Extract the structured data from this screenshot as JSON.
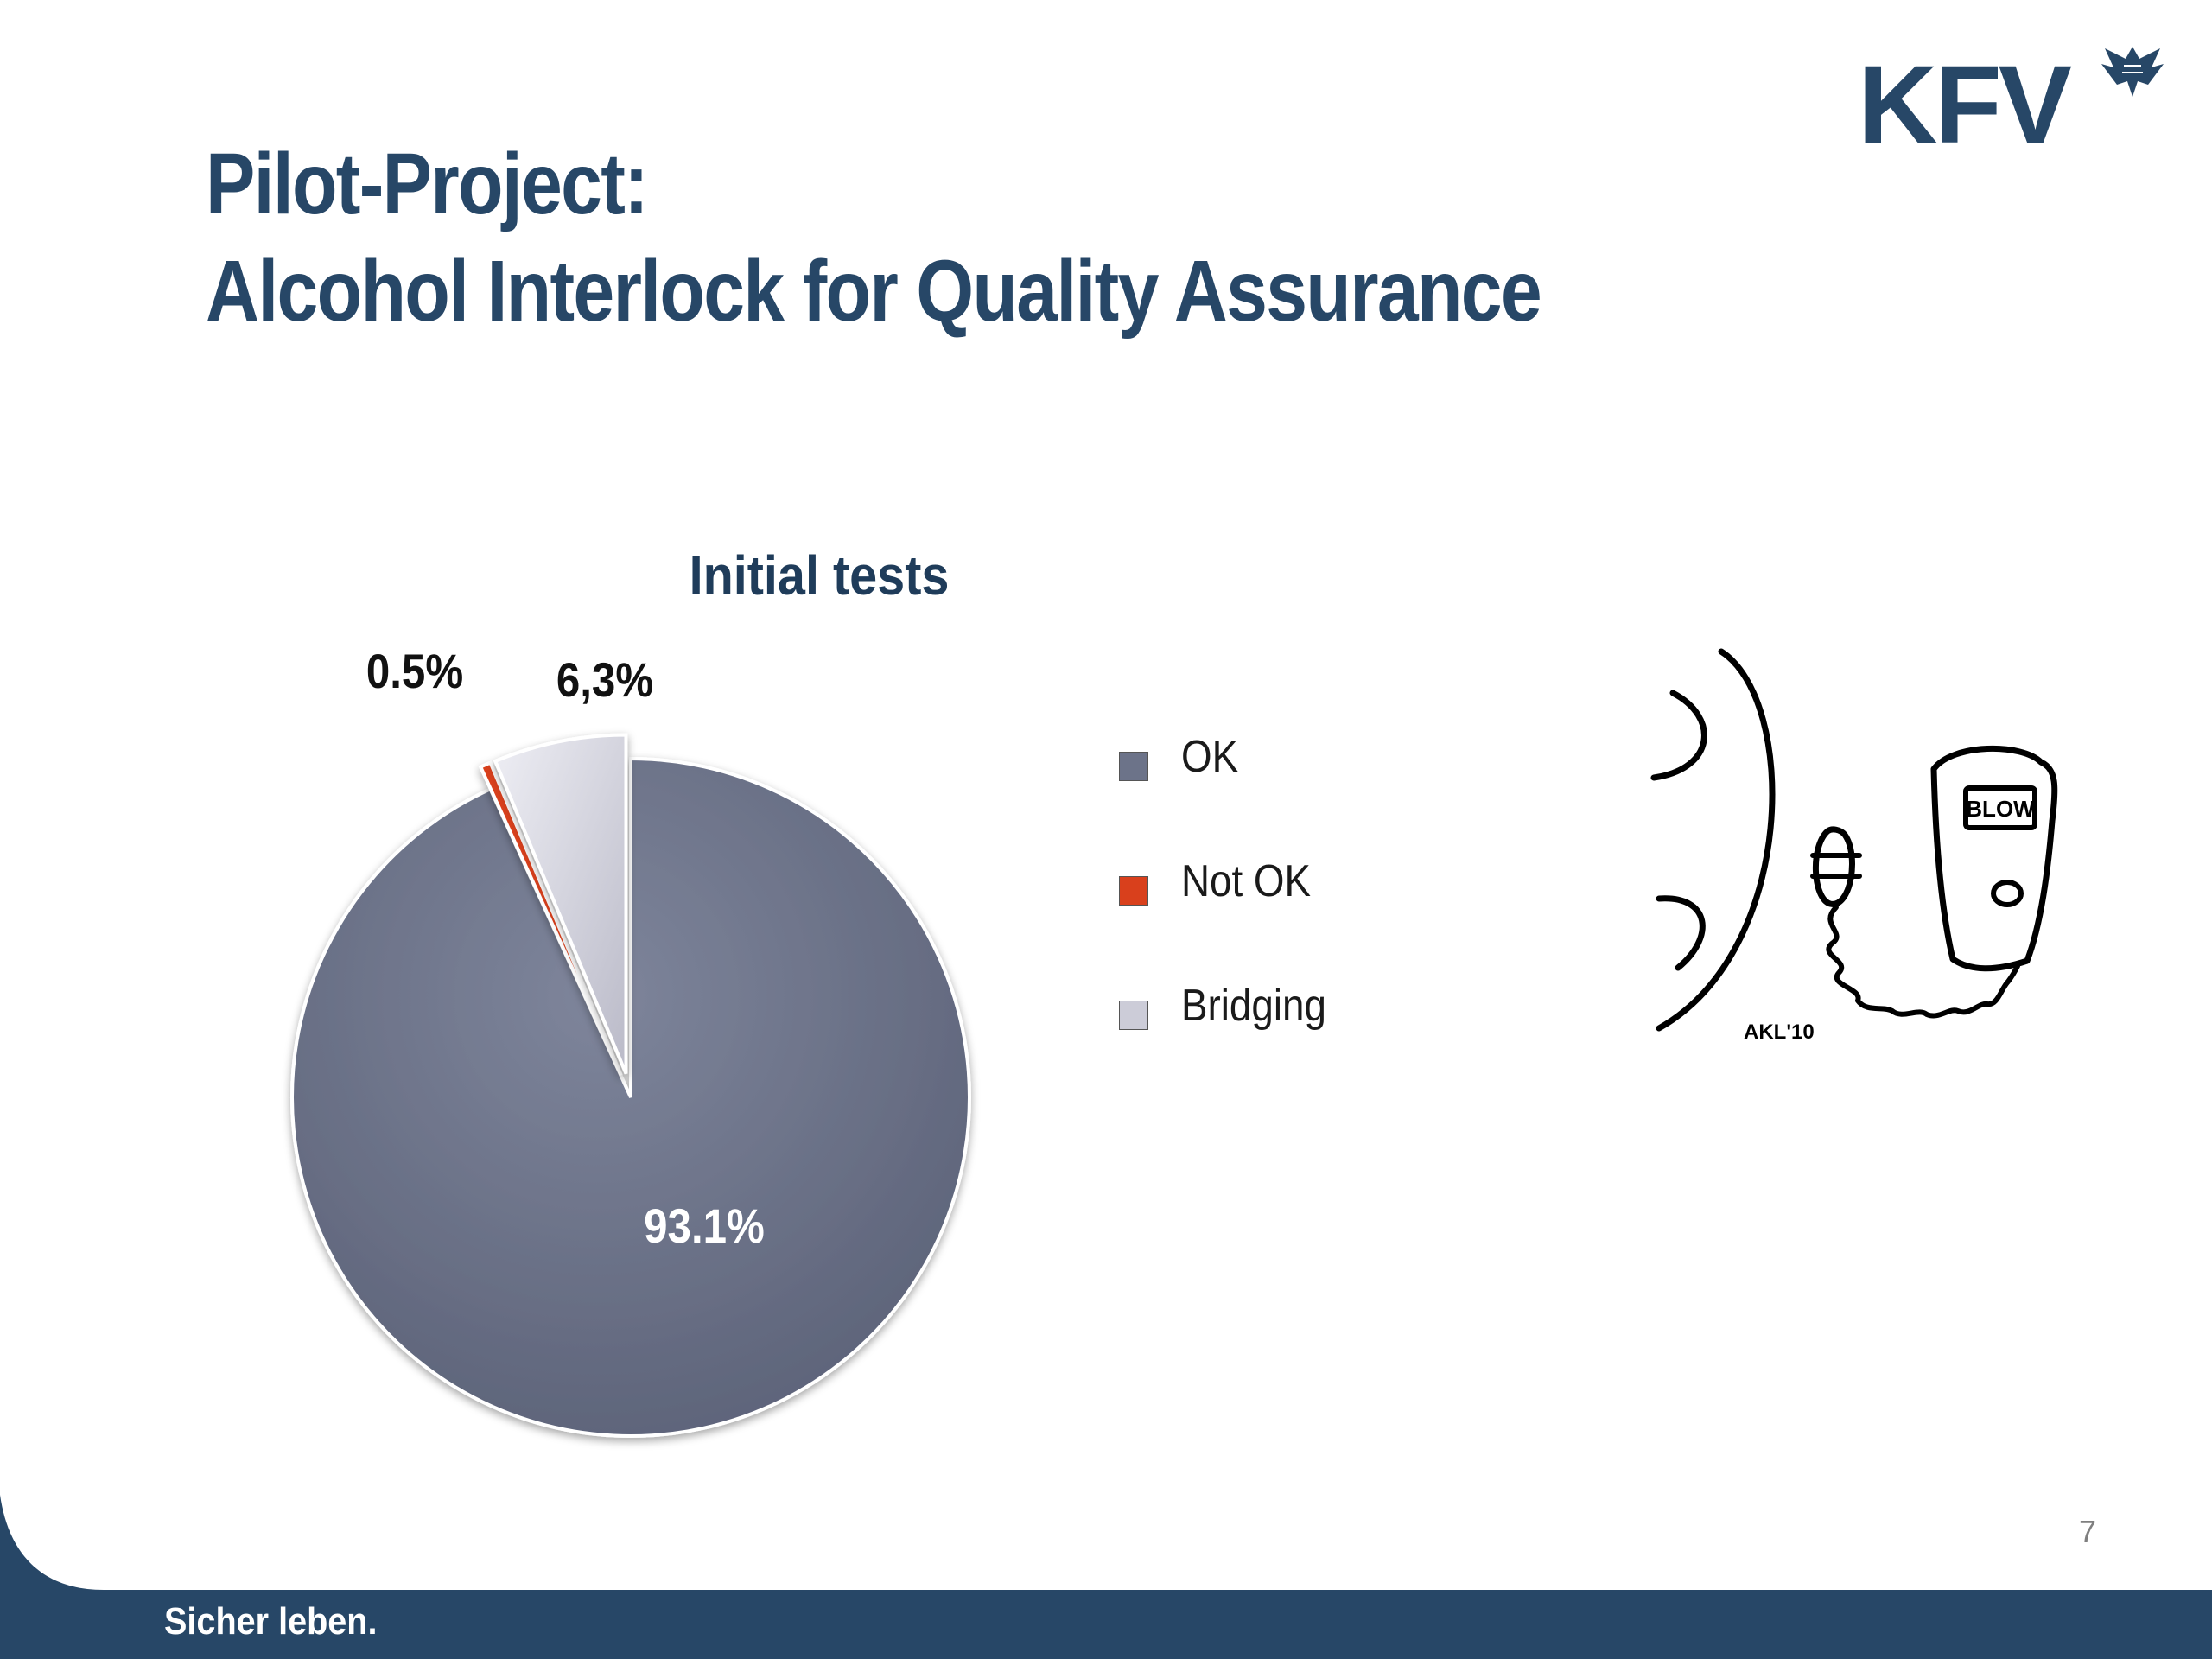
{
  "slide": {
    "title_line1": "Pilot-Project:",
    "title_line2": "Alcohol Interlock for Quality Assurance",
    "logo_text": "KFV",
    "page_number": "7",
    "footer_text": "Sicher leben.",
    "sketch_display_text": "BLOW",
    "sketch_signature": "AKL'10"
  },
  "colors": {
    "brand_navy": "#274767",
    "ok": "#6c7389",
    "not_ok": "#d9401c",
    "bridging": "#ccccd8"
  },
  "chart_data": {
    "type": "pie",
    "title": "Initial tests",
    "legend_position": "right",
    "slices": [
      {
        "name": "OK",
        "value": 93.1,
        "label": "93.1%"
      },
      {
        "name": "Not OK",
        "value": 0.5,
        "label": "0.5%"
      },
      {
        "name": "Bridging",
        "value": 6.3,
        "label": "6,3%"
      }
    ]
  },
  "legend": {
    "items": [
      {
        "label": "OK"
      },
      {
        "label": "Not OK"
      },
      {
        "label": "Bridging"
      }
    ]
  }
}
